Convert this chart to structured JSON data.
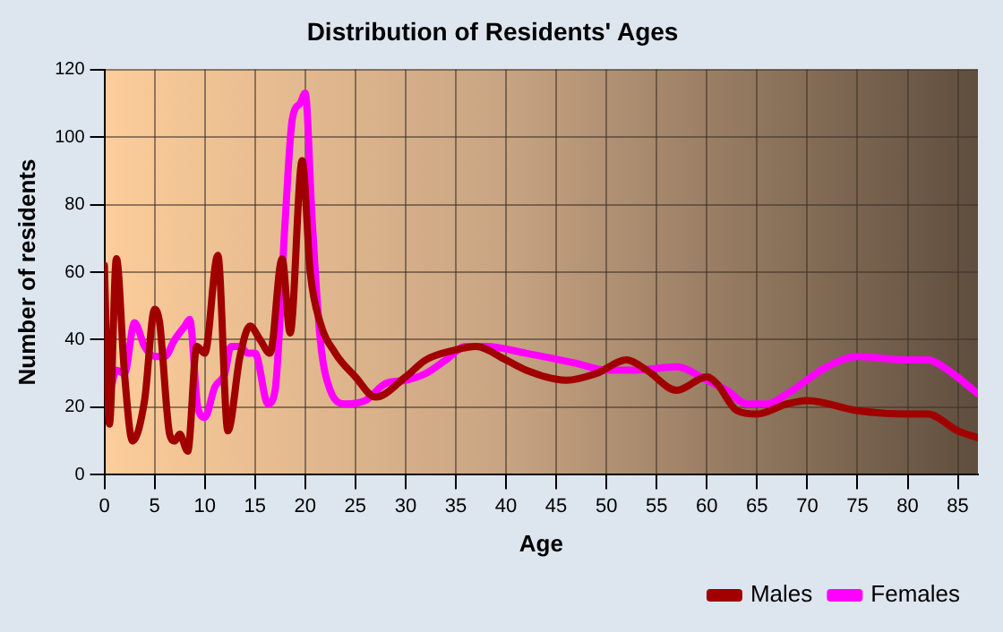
{
  "chart_data": {
    "type": "line",
    "title": "Distribution of Residents' Ages",
    "xlabel": "Age",
    "ylabel": "Number of residents",
    "xlim": [
      0,
      87
    ],
    "xticks": [
      0,
      5,
      10,
      15,
      20,
      25,
      30,
      35,
      40,
      45,
      50,
      55,
      60,
      65,
      70,
      75,
      80,
      85
    ],
    "ylim": [
      0,
      120
    ],
    "yticks": [
      0,
      20,
      40,
      60,
      80,
      100,
      120
    ],
    "grid": true,
    "legend": "bottom right",
    "marker": "none",
    "series": [
      {
        "name": "Males",
        "color": "#a00000",
        "x": [
          0,
          0.5,
          1.2,
          2,
          2.8,
          4,
          5,
          5.5,
          6.5,
          7,
          7.5,
          8.3,
          9.2,
          10,
          11.3,
          12.3,
          13.5,
          14.5,
          15.5,
          16.5,
          17.7,
          18.5,
          19.7,
          20.5,
          21.5,
          23,
          25,
          27,
          30,
          32,
          35,
          37,
          40,
          42,
          46,
          49,
          52,
          54,
          57,
          60,
          61,
          63,
          65,
          68,
          70,
          75,
          80,
          82,
          85,
          87
        ],
        "values": [
          62,
          15,
          64,
          30,
          10,
          22,
          49,
          45,
          12,
          10,
          12,
          7,
          38,
          36,
          65,
          13,
          35,
          44,
          40,
          36,
          64,
          42,
          93,
          60,
          45,
          36,
          29,
          23,
          29,
          34,
          37,
          38,
          34,
          31,
          28,
          30,
          34,
          31,
          25,
          29,
          27,
          19,
          18,
          21,
          22,
          19,
          18,
          18,
          13,
          11
        ]
      },
      {
        "name": "Females",
        "color": "#ff00ff",
        "x": [
          0.6,
          1.2,
          2,
          3,
          4,
          5,
          6,
          7,
          8,
          8.5,
          9.3,
          10,
          11,
          12,
          12.6,
          13.5,
          14.3,
          15,
          16.3,
          17,
          18,
          18.7,
          19.5,
          20,
          20.7,
          21.5,
          22.5,
          24,
          26,
          28,
          30,
          32,
          34,
          36,
          38,
          42,
          47,
          50,
          53,
          57,
          60,
          62,
          64,
          66,
          68,
          72,
          75,
          80,
          82,
          84,
          87
        ],
        "values": [
          25,
          31,
          30,
          45,
          38,
          35,
          35,
          40,
          44,
          46,
          20,
          17,
          26,
          30,
          38,
          38,
          36,
          36,
          21,
          25,
          75,
          105,
          110,
          113,
          75,
          40,
          25,
          21,
          22,
          27,
          28,
          30,
          34,
          38,
          38,
          36,
          33,
          31,
          31,
          32,
          28,
          25,
          21,
          21,
          24,
          32,
          35,
          34,
          34,
          31,
          24
        ]
      }
    ]
  }
}
